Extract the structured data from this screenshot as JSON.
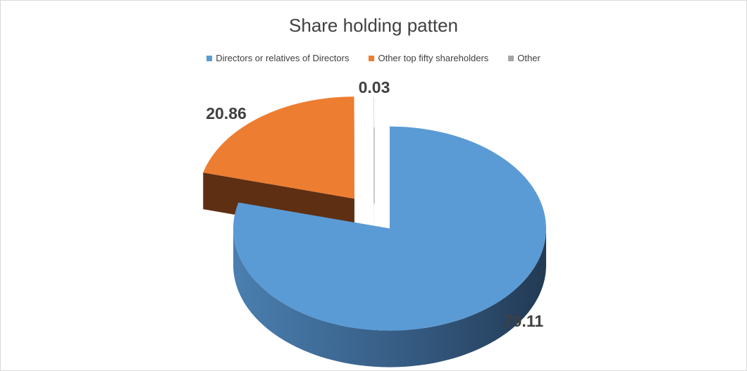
{
  "chart_data": {
    "type": "pie",
    "title": "Share holding patten",
    "legend_position": "top",
    "three_d": true,
    "categories": [
      "Directors or relatives of Directors",
      "Other top fifty shareholders",
      "Other"
    ],
    "values": [
      79.11,
      20.86,
      0.03
    ],
    "value_labels": [
      "79.11",
      "20.86",
      "0.03"
    ],
    "colors": [
      "#5b9bd5",
      "#ed7d31",
      "#a5a5a5"
    ],
    "side_colors": [
      "#2f5273",
      "#5e2f12",
      "#6e6e6e"
    ]
  }
}
